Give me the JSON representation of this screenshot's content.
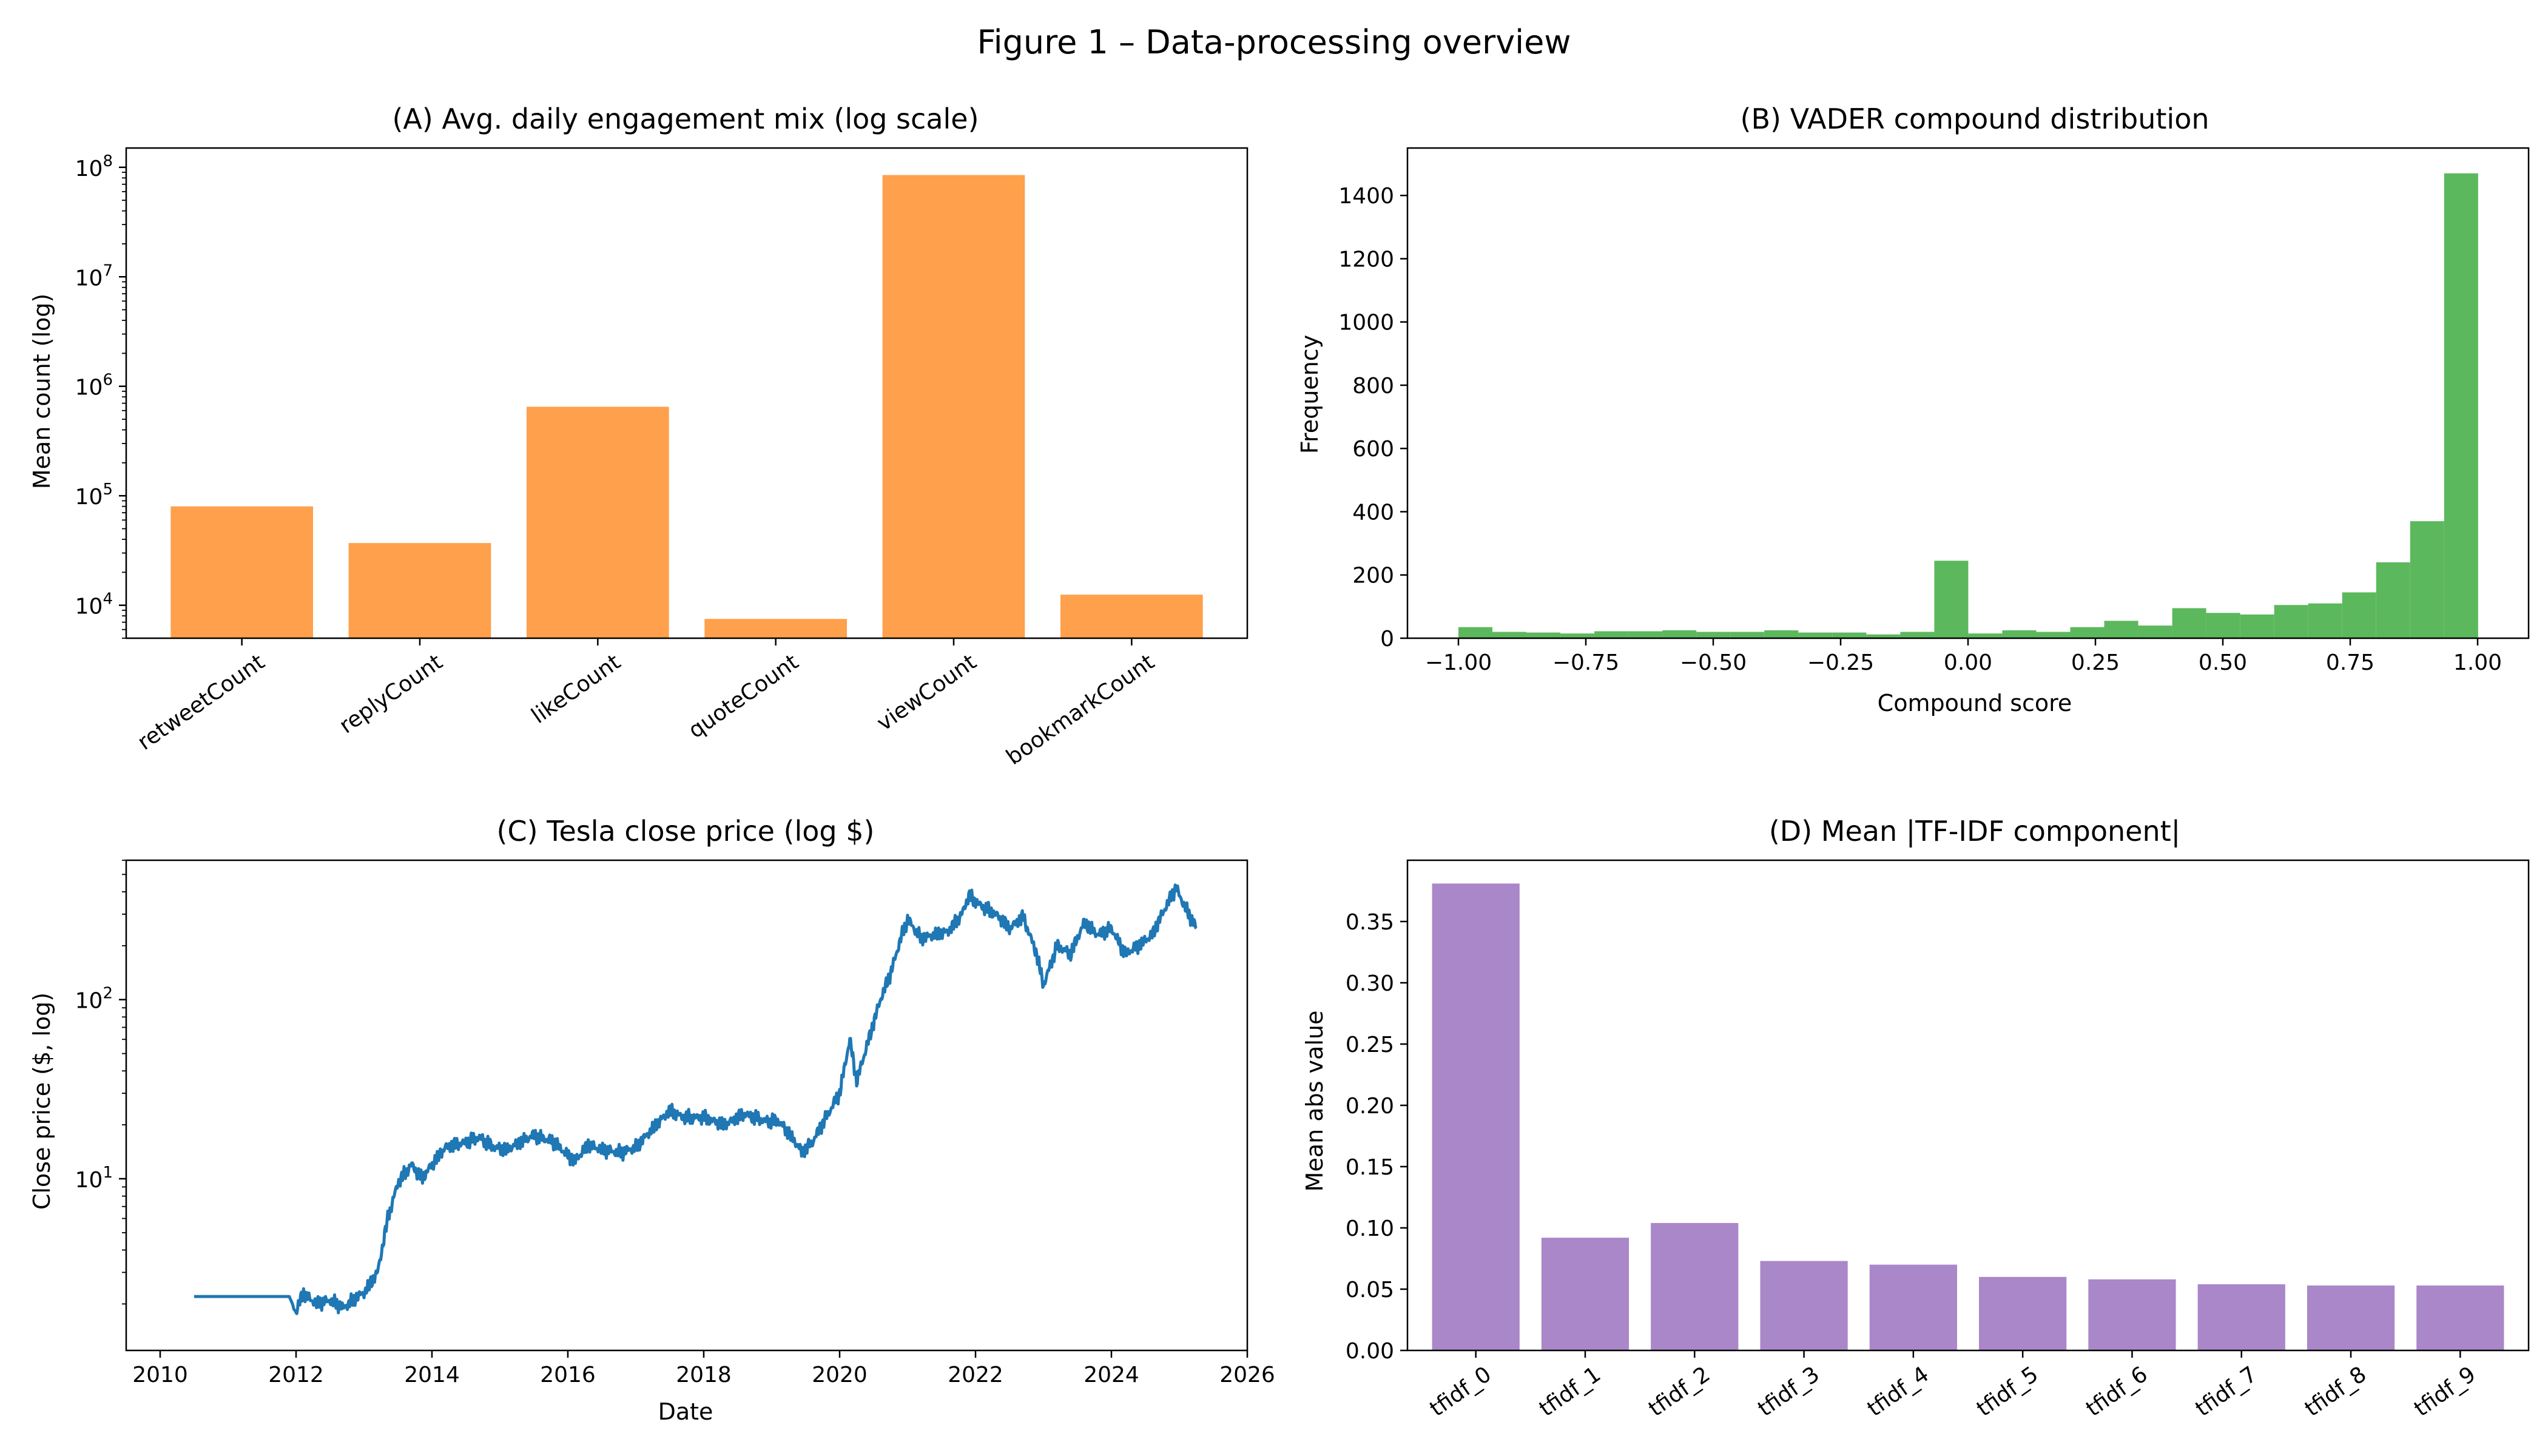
{
  "figure_title": "Figure 1 – Data-processing overview",
  "colors": {
    "bar_a": "#ffa04c",
    "hist_b": "#5cb85c",
    "line_c": "#1f77b4",
    "bar_d": "#a987c9"
  },
  "chart_data": [
    {
      "id": "A",
      "type": "bar",
      "title": "(A) Avg. daily engagement mix (log scale)",
      "xlabel": "",
      "ylabel": "Mean count (log)",
      "yscale": "log",
      "ylim": [
        5000,
        150000000
      ],
      "categories": [
        "retweetCount",
        "replyCount",
        "likeCount",
        "quoteCount",
        "viewCount",
        "bookmarkCount"
      ],
      "values": [
        80000,
        37000,
        650000,
        7500,
        85000000,
        12500
      ],
      "yticks": [
        10000,
        100000,
        1000000,
        10000000,
        100000000
      ],
      "ytick_labels": [
        [
          "10",
          "4"
        ],
        [
          "10",
          "5"
        ],
        [
          "10",
          "6"
        ],
        [
          "10",
          "7"
        ],
        [
          "10",
          "8"
        ]
      ]
    },
    {
      "id": "B",
      "type": "bar",
      "subtype": "histogram",
      "title": "(B) VADER compound distribution",
      "xlabel": "Compound score",
      "ylabel": "Frequency",
      "xlim": [
        -1.1,
        1.1
      ],
      "ylim": [
        0,
        1550
      ],
      "bin_start": -1.0,
      "bin_width": 0.0667,
      "values": [
        35,
        20,
        18,
        15,
        22,
        22,
        25,
        20,
        20,
        25,
        18,
        18,
        12,
        20,
        245,
        15,
        25,
        20,
        35,
        55,
        40,
        95,
        80,
        75,
        105,
        110,
        145,
        240,
        370,
        1470
      ],
      "xticks": [
        -1.0,
        -0.75,
        -0.5,
        -0.25,
        0.0,
        0.25,
        0.5,
        0.75,
        1.0
      ],
      "xtick_labels": [
        "−1.00",
        "−0.75",
        "−0.50",
        "−0.25",
        "0.00",
        "0.25",
        "0.50",
        "0.75",
        "1.00"
      ],
      "yticks": [
        0,
        200,
        400,
        600,
        800,
        1000,
        1200,
        1400
      ],
      "ytick_labels": [
        "0",
        "200",
        "400",
        "600",
        "800",
        "1000",
        "1200",
        "1400"
      ]
    },
    {
      "id": "C",
      "type": "line",
      "title": "(C) Tesla close price (log $)",
      "xlabel": "Date",
      "ylabel": "Close price ($, log)",
      "yscale": "log",
      "xlim": [
        2009.5,
        2026.0
      ],
      "ylim": [
        1.1,
        600
      ],
      "series": [
        {
          "name": "Close",
          "x": [
            2010.5,
            2011.0,
            2011.5,
            2011.9,
            2012.0,
            2012.1,
            2012.3,
            2012.5,
            2012.7,
            2012.9,
            2013.0,
            2013.2,
            2013.35,
            2013.5,
            2013.7,
            2013.85,
            2014.0,
            2014.2,
            2014.5,
            2014.7,
            2014.9,
            2015.1,
            2015.3,
            2015.5,
            2015.8,
            2016.0,
            2016.1,
            2016.3,
            2016.5,
            2016.8,
            2017.0,
            2017.3,
            2017.5,
            2017.7,
            2018.0,
            2018.3,
            2018.6,
            2018.9,
            2019.1,
            2019.3,
            2019.45,
            2019.6,
            2019.8,
            2020.0,
            2020.15,
            2020.25,
            2020.4,
            2020.6,
            2020.75,
            2020.9,
            2021.0,
            2021.2,
            2021.4,
            2021.6,
            2021.8,
            2021.9,
            2022.1,
            2022.3,
            2022.5,
            2022.7,
            2022.9,
            2023.0,
            2023.2,
            2023.4,
            2023.6,
            2023.8,
            2024.0,
            2024.2,
            2024.4,
            2024.6,
            2024.8,
            2024.95,
            2025.1,
            2025.25
          ],
          "y": [
            2.2,
            2.2,
            2.2,
            2.2,
            1.8,
            2.3,
            2.0,
            2.1,
            1.9,
            2.2,
            2.3,
            3.0,
            6.0,
            9.5,
            12.0,
            10.0,
            12.0,
            15.0,
            16.0,
            17.0,
            15.0,
            14.5,
            16.0,
            17.5,
            16.0,
            13.5,
            12.5,
            15.5,
            14.5,
            14.0,
            15.0,
            20.0,
            24.0,
            22.0,
            22.0,
            20.0,
            23.0,
            21.0,
            21.0,
            17.0,
            14.0,
            16.0,
            22.0,
            30.0,
            60.0,
            35.0,
            55.0,
            100.0,
            140.0,
            220.0,
            280.0,
            220.0,
            230.0,
            240.0,
            300.0,
            380.0,
            330.0,
            300.0,
            250.0,
            290.0,
            180.0,
            120.0,
            200.0,
            180.0,
            270.0,
            230.0,
            250.0,
            180.0,
            200.0,
            230.0,
            330.0,
            420.0,
            320.0,
            250.0
          ]
        }
      ],
      "xticks": [
        2010,
        2012,
        2014,
        2016,
        2018,
        2020,
        2022,
        2024,
        2026
      ],
      "xtick_labels": [
        "2010",
        "2012",
        "2014",
        "2016",
        "2018",
        "2020",
        "2022",
        "2024",
        "2026"
      ],
      "yticks": [
        10,
        100
      ],
      "ytick_labels": [
        [
          "10",
          "1"
        ],
        [
          "10",
          "2"
        ]
      ]
    },
    {
      "id": "D",
      "type": "bar",
      "title": "(D) Mean |TF-IDF component|",
      "xlabel": "",
      "ylabel": "Mean abs value",
      "ylim": [
        0,
        0.4
      ],
      "categories": [
        "tfidf_0",
        "tfidf_1",
        "tfidf_2",
        "tfidf_3",
        "tfidf_4",
        "tfidf_5",
        "tfidf_6",
        "tfidf_7",
        "tfidf_8",
        "tfidf_9"
      ],
      "values": [
        0.381,
        0.092,
        0.104,
        0.073,
        0.07,
        0.06,
        0.058,
        0.054,
        0.053,
        0.053
      ],
      "yticks": [
        0.0,
        0.05,
        0.1,
        0.15,
        0.2,
        0.25,
        0.3,
        0.35
      ],
      "ytick_labels": [
        "0.00",
        "0.05",
        "0.10",
        "0.15",
        "0.20",
        "0.25",
        "0.30",
        "0.35"
      ]
    }
  ]
}
